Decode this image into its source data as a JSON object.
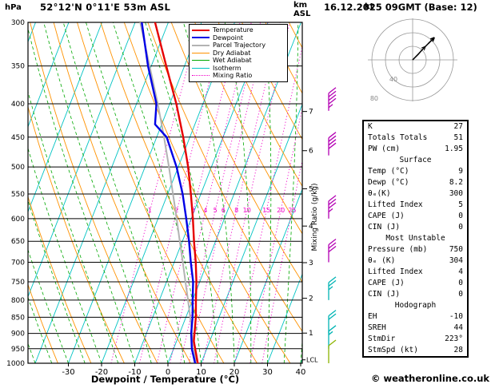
{
  "header": {
    "station": "52°12'N 0°11'E 53m ASL",
    "datetime": "16.12.2025 09GMT (Base: 12)",
    "pressure_unit": "hPa",
    "altitude_unit_km": "km",
    "altitude_unit_asl": "ASL"
  },
  "hodograph": {
    "unit_label": "kt"
  },
  "axes": {
    "xlabel": "Dewpoint / Temperature (°C)",
    "mixing_ratio_label": "Mixing Ratio (g/kg)",
    "lcl_label": "LCL"
  },
  "legend": {
    "items": [
      {
        "label": "Temperature",
        "color": "#e60000",
        "style": "solid",
        "weight": 2
      },
      {
        "label": "Dewpoint",
        "color": "#0000e6",
        "style": "solid",
        "weight": 2
      },
      {
        "label": "Parcel Trajectory",
        "color": "#b3b3b3",
        "style": "solid",
        "weight": 2
      },
      {
        "label": "Dry Adiabat",
        "color": "#ff9200",
        "style": "solid",
        "weight": 1
      },
      {
        "label": "Wet Adiabat",
        "color": "#00a800",
        "style": "solid",
        "weight": 1
      },
      {
        "label": "Isotherm",
        "color": "#00c3c3",
        "style": "solid",
        "weight": 1
      },
      {
        "label": "Mixing Ratio",
        "color": "#f000c8",
        "style": "dotted",
        "weight": 1
      }
    ]
  },
  "stats": {
    "sections": [
      {
        "title": null,
        "rows": [
          [
            "K",
            "27"
          ],
          [
            "Totals Totals",
            "51"
          ],
          [
            "PW (cm)",
            "1.95"
          ]
        ]
      },
      {
        "title": "Surface",
        "rows": [
          [
            "Temp (°C)",
            "9"
          ],
          [
            "Dewp (°C)",
            "8.2"
          ],
          [
            "θₑ(K)",
            "300"
          ],
          [
            "Lifted Index",
            "5"
          ],
          [
            "CAPE (J)",
            "0"
          ],
          [
            "CIN (J)",
            "0"
          ]
        ]
      },
      {
        "title": "Most Unstable",
        "rows": [
          [
            "Pressure (mb)",
            "750"
          ],
          [
            "θₑ (K)",
            "304"
          ],
          [
            "Lifted Index",
            "4"
          ],
          [
            "CAPE (J)",
            "0"
          ],
          [
            "CIN (J)",
            "0"
          ]
        ]
      },
      {
        "title": "Hodograph",
        "rows": [
          [
            "EH",
            "-10"
          ],
          [
            "SREH",
            "44"
          ],
          [
            "StmDir",
            "223°"
          ],
          [
            "StmSpd (kt)",
            "28"
          ]
        ]
      }
    ]
  },
  "footer": {
    "copyright": "© weatheronline.co.uk"
  },
  "chart_data": {
    "type": "line",
    "subtype": "skewt_log_p_sounding",
    "pressure_axis_hpa": {
      "min": 300,
      "max": 1000,
      "scale": "log",
      "ticks": [
        300,
        350,
        400,
        450,
        500,
        550,
        600,
        650,
        700,
        750,
        800,
        850,
        900,
        950,
        1000
      ]
    },
    "temp_axis_c": {
      "ticks": [
        -30,
        -20,
        -10,
        0,
        10,
        20,
        30,
        40
      ]
    },
    "altitude_ticks": [
      {
        "km": 1,
        "hpa": 899
      },
      {
        "km": 2,
        "hpa": 795
      },
      {
        "km": 3,
        "hpa": 701
      },
      {
        "km": 4,
        "hpa": 616
      },
      {
        "km": 5,
        "hpa": 540
      },
      {
        "km": 6,
        "hpa": 472
      },
      {
        "km": 7,
        "hpa": 411
      }
    ],
    "mixing_ratio_lines_gkg": [
      1,
      2,
      3,
      4,
      5,
      6,
      8,
      10,
      15,
      20,
      25
    ],
    "lcl_pressure_hpa": 988,
    "series": [
      {
        "name": "Temperature",
        "color": "#e60000",
        "width": 2.4,
        "points_p_t": [
          [
            1000,
            9
          ],
          [
            950,
            6.5
          ],
          [
            925,
            5.2
          ],
          [
            900,
            4.5
          ],
          [
            850,
            3
          ],
          [
            800,
            1
          ],
          [
            750,
            -1
          ],
          [
            700,
            -3.5
          ],
          [
            650,
            -6.5
          ],
          [
            600,
            -9.5
          ],
          [
            550,
            -13
          ],
          [
            500,
            -17
          ],
          [
            450,
            -22
          ],
          [
            400,
            -28
          ],
          [
            350,
            -35.5
          ],
          [
            300,
            -44
          ]
        ]
      },
      {
        "name": "Dewpoint",
        "color": "#0000e6",
        "width": 2.4,
        "points_p_t": [
          [
            1000,
            8.2
          ],
          [
            950,
            5.5
          ],
          [
            900,
            3.5
          ],
          [
            850,
            2
          ],
          [
            800,
            0
          ],
          [
            750,
            -2
          ],
          [
            700,
            -5
          ],
          [
            650,
            -8
          ],
          [
            600,
            -11.5
          ],
          [
            550,
            -15.5
          ],
          [
            500,
            -20.5
          ],
          [
            450,
            -27
          ],
          [
            430,
            -32
          ],
          [
            400,
            -34
          ],
          [
            350,
            -41
          ],
          [
            300,
            -48
          ]
        ]
      },
      {
        "name": "Parcel Trajectory",
        "color": "#b3b3b3",
        "width": 2,
        "points_p_t": [
          [
            1000,
            9
          ],
          [
            988,
            8
          ],
          [
            950,
            6.2
          ],
          [
            900,
            3.8
          ],
          [
            850,
            1.3
          ],
          [
            800,
            -1.4
          ],
          [
            750,
            -4.3
          ],
          [
            700,
            -7.4
          ],
          [
            650,
            -10.8
          ],
          [
            600,
            -14.4
          ],
          [
            550,
            -18.4
          ],
          [
            500,
            -22.8
          ],
          [
            450,
            -27.8
          ],
          [
            400,
            -33.6
          ],
          [
            350,
            -40.5
          ],
          [
            300,
            -48.5
          ]
        ]
      }
    ],
    "background_lines": {
      "isotherm": {
        "color": "#00c3c3",
        "step_c": 10
      },
      "dry_adiabat": {
        "color": "#ff9200",
        "step_k": 10
      },
      "wet_adiabat": {
        "color": "#00a800",
        "step_c": 5
      },
      "mixing_ratio": {
        "color": "#f000c8"
      },
      "pressure_line_color": "#000000"
    },
    "wind_barbs": [
      {
        "pressure_hpa": 410,
        "speed_kt": 45,
        "color": "#b400b4"
      },
      {
        "pressure_hpa": 480,
        "speed_kt": 40,
        "color": "#b400b4"
      },
      {
        "pressure_hpa": 600,
        "speed_kt": 35,
        "color": "#b400b4"
      },
      {
        "pressure_hpa": 700,
        "speed_kt": 30,
        "color": "#b400b4"
      },
      {
        "pressure_hpa": 800,
        "speed_kt": 25,
        "color": "#00b4b4"
      },
      {
        "pressure_hpa": 900,
        "speed_kt": 20,
        "color": "#00b4b4"
      },
      {
        "pressure_hpa": 950,
        "speed_kt": 15,
        "color": "#00b4b4"
      },
      {
        "pressure_hpa": 1000,
        "speed_kt": 10,
        "color": "#8cb400"
      }
    ],
    "hodograph_plot": {
      "rings_kt": [
        20,
        40,
        60
      ],
      "ring_label_values": [
        40,
        80
      ],
      "trace_uv_kt": [
        [
          3,
          3
        ],
        [
          8,
          8
        ],
        [
          15,
          16
        ],
        [
          23,
          24
        ],
        [
          32,
          33
        ]
      ],
      "storm_vector_uv_kt": [
        19,
        20
      ]
    }
  }
}
